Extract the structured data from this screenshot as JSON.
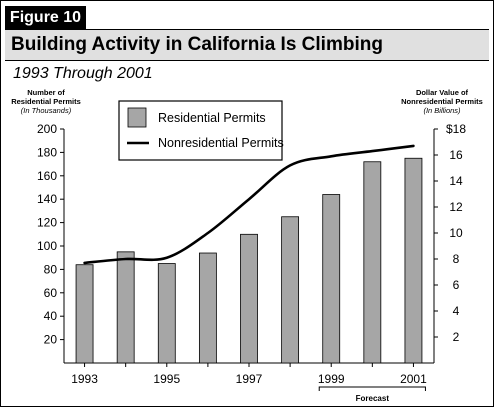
{
  "figure": {
    "label": "Figure 10",
    "title": "Building Activity in California Is Climbing",
    "subtitle": "1993 Through 2001"
  },
  "chart_data": {
    "type": "bar",
    "categories": [
      "1993",
      "1994",
      "1995",
      "1996",
      "1997",
      "1998",
      "1999",
      "2000",
      "2001"
    ],
    "x_tick_labels": [
      "1993",
      "1995",
      "1997",
      "1999",
      "2001"
    ],
    "series": [
      {
        "name": "Residential Permits",
        "type": "bar",
        "axis": "left",
        "values": [
          84,
          95,
          85,
          94,
          110,
          125,
          144,
          172,
          175
        ]
      },
      {
        "name": "Nonresidential Permits",
        "type": "line",
        "axis": "right",
        "values": [
          7.7,
          8.0,
          8.1,
          10.0,
          12.6,
          15.2,
          15.9,
          16.3,
          16.7
        ]
      }
    ],
    "left_axis": {
      "title_line1": "Number of",
      "title_line2": "Residential Permits",
      "unit": "(In Thousands)",
      "ylim": [
        0,
        200
      ],
      "ticks": [
        20,
        40,
        60,
        80,
        100,
        120,
        140,
        160,
        180,
        200
      ]
    },
    "right_axis": {
      "title_line1": "Dollar Value of",
      "title_line2": "Nonresidential Permits",
      "unit": "(In Billions)",
      "ylim": [
        0,
        18
      ],
      "ticks": [
        2,
        4,
        6,
        8,
        10,
        12,
        14,
        16
      ],
      "top_tick_label": "$18"
    },
    "forecast_label": "Forecast",
    "forecast_categories": [
      "1999",
      "2001"
    ],
    "legend_position": "top-left",
    "grid": false,
    "colors": {
      "bar_fill": "#a6a6a6",
      "bar_stroke": "#000000",
      "line": "#000000",
      "header_bg": "#e0e0e0"
    }
  }
}
